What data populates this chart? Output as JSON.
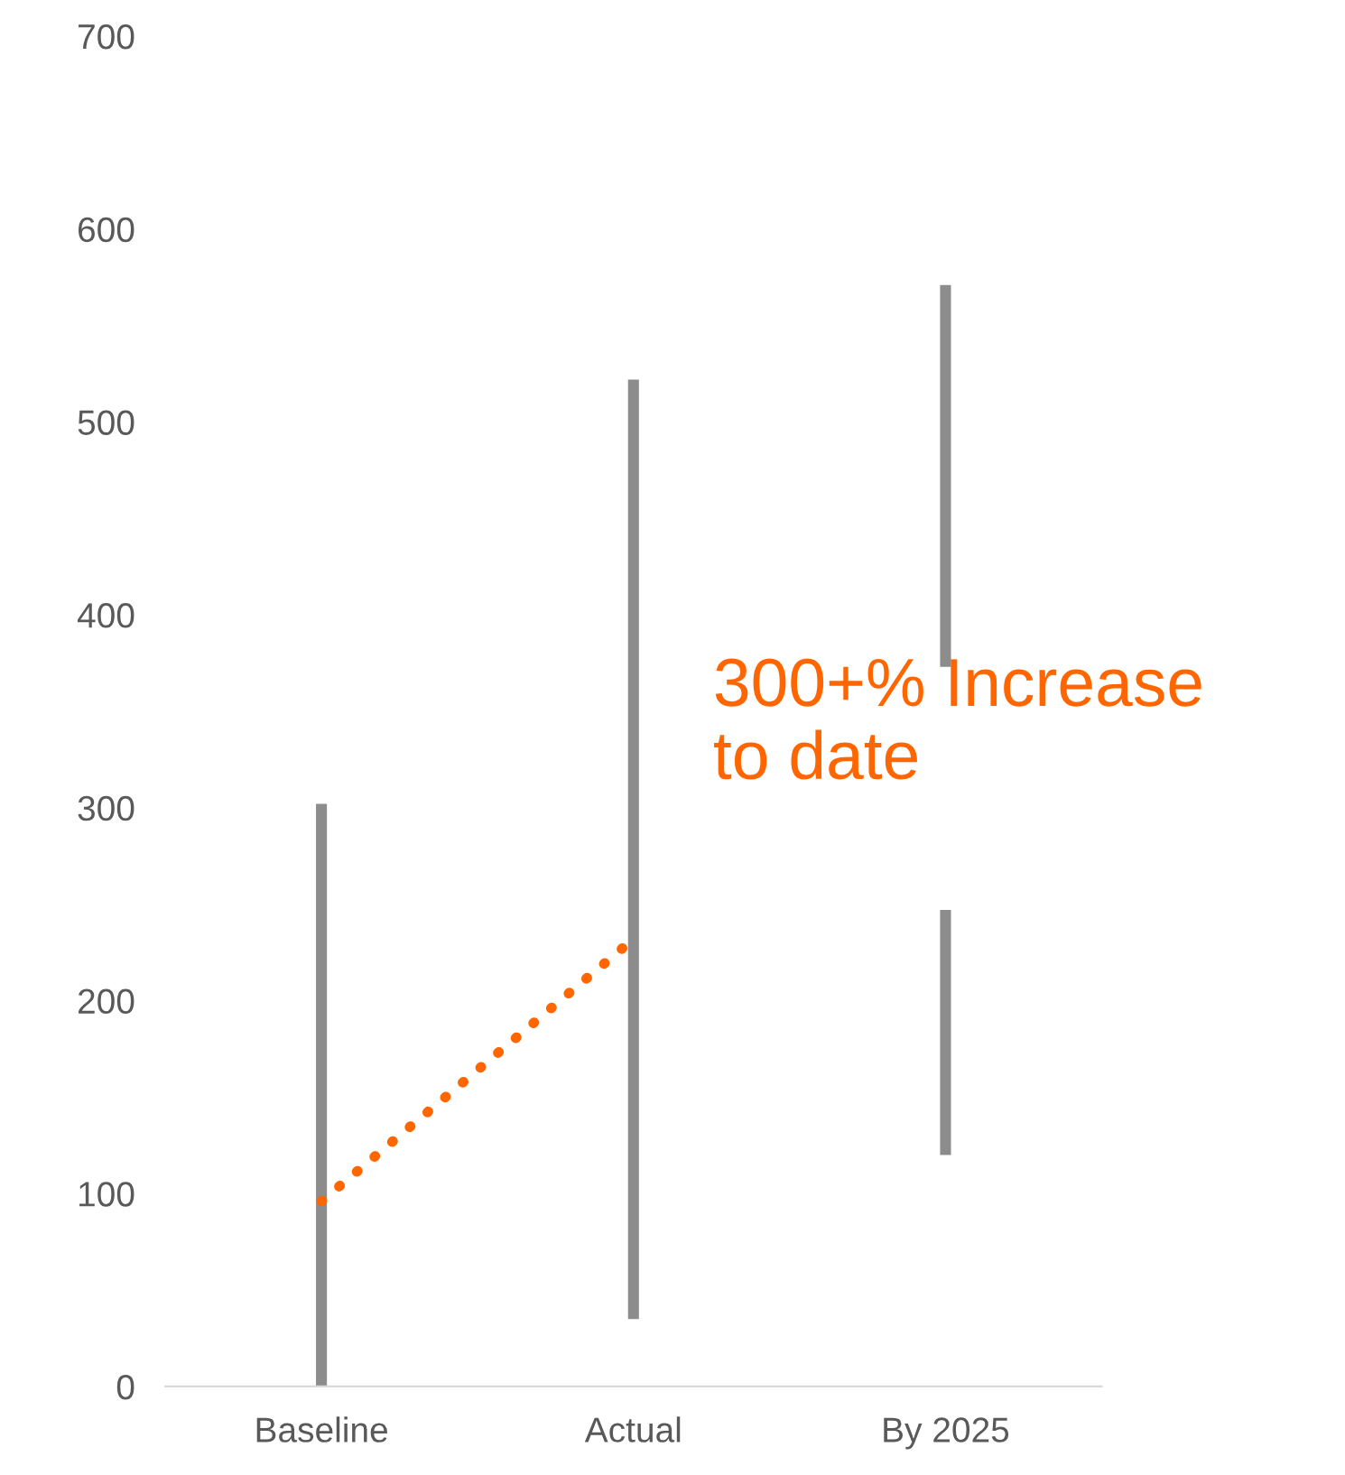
{
  "chart_data": {
    "type": "bar",
    "categories": [
      "Baseline",
      "Actual",
      "By 2025"
    ],
    "series": [
      {
        "color": "#8c8c8c",
        "base": [
          0,
          35,
          120
        ],
        "values": [
          302,
          487,
          127
        ]
      },
      {
        "color": "#8c8c8c",
        "base": [
          null,
          null,
          373
        ],
        "values": [
          null,
          null,
          198
        ]
      },
      {
        "type": "line",
        "color": "#ff6600",
        "line_style": "dotted",
        "values": [
          96,
          232,
          null
        ]
      }
    ],
    "annotations": [
      "300+% Increase\nto date"
    ],
    "ylim": [
      0,
      700
    ],
    "yticks": [
      0,
      100,
      200,
      300,
      400,
      500,
      600,
      700
    ],
    "grid": false,
    "legend": false
  }
}
